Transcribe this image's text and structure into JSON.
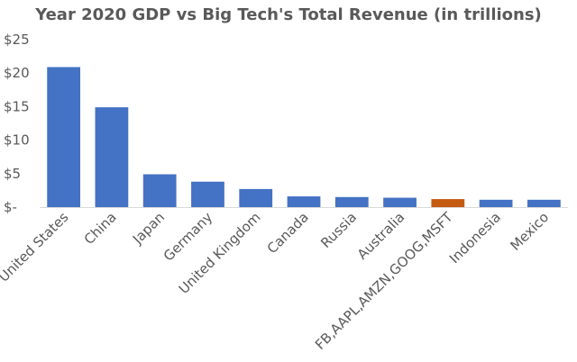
{
  "chart_data": {
    "type": "bar",
    "title": "Year 2020 GDP vs Big Tech's Total Revenue (in trillions)",
    "xlabel": "",
    "ylabel": "",
    "categories": [
      "United States",
      "China",
      "Japan",
      "Germany",
      "United Kingdom",
      "Canada",
      "Russia",
      "Australia",
      "FB,AAPL,AMZN,GOOG,MSFT",
      "Indonesia",
      "Mexico"
    ],
    "values": [
      20.9,
      14.9,
      4.9,
      3.8,
      2.7,
      1.6,
      1.5,
      1.4,
      1.2,
      1.1,
      1.1
    ],
    "ylim": [
      0,
      25
    ],
    "yticks": [
      0,
      5,
      10,
      15,
      20,
      25
    ],
    "ytick_labels": [
      "$-",
      "$5",
      "$10",
      "$15",
      "$20",
      "$25"
    ],
    "grid": false,
    "colors": {
      "default": "#4472C4",
      "highlight": "#C55A11",
      "axis": "#D9D9D9",
      "text": "#595959"
    },
    "highlight_category": "FB,AAPL,AMZN,GOOG,MSFT"
  }
}
